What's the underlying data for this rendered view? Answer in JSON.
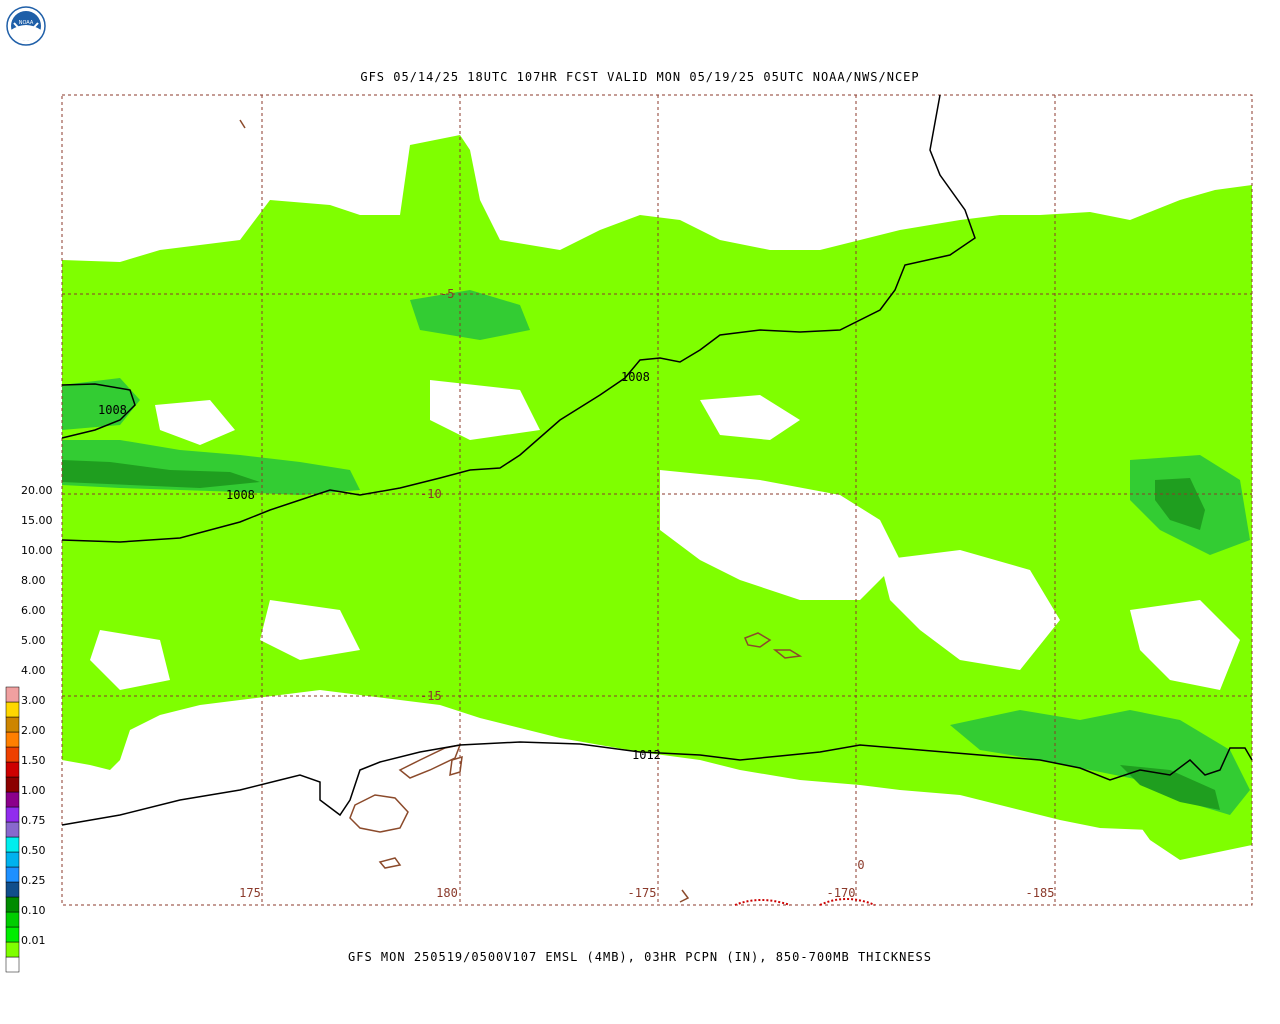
{
  "header": {
    "logo_text": "NOAA",
    "title": "GFS 05/14/25 18UTC 107HR FCST VALID MON 05/19/25 05UTC NOAA/NWS/NCEP"
  },
  "footer": {
    "title": "GFS MON 250519/0500V107 EMSL (4MB), 03HR PCPN (IN), 850-700MB THICKNESS"
  },
  "map": {
    "lat_labels": [
      "-5",
      "-10",
      "-15"
    ],
    "lon_labels": [
      "175",
      "180",
      "-175",
      "-170",
      "-185"
    ],
    "isobar_labels": [
      "1008",
      "1008",
      "1008",
      "1012"
    ],
    "stray_label": "0",
    "colors": {
      "precip_light": "#7fff00",
      "precip_mid": "#33cc33",
      "precip_heavy": "#1f9e1f",
      "isobar": "#000000",
      "coastline": "#8b4a2b",
      "grid": "#8b3a2b"
    }
  },
  "legend": {
    "labels": [
      "20.00",
      "15.00",
      "10.00",
      "8.00",
      "6.00",
      "5.00",
      "4.00",
      "3.00",
      "2.00",
      "1.50",
      "1.00",
      "0.75",
      "0.50",
      "0.25",
      "0.10",
      "0.01"
    ],
    "colors": [
      "#ffffff",
      "#7fff00",
      "#00ee00",
      "#00cd00",
      "#008b00",
      "#104e8b",
      "#1e90ff",
      "#00b2ee",
      "#00eeee",
      "#8968cd",
      "#912cee",
      "#8b008b",
      "#8b0000",
      "#cd0000",
      "#ee4000",
      "#ff7f00",
      "#cd8500",
      "#ffd700",
      "#f0a0a0"
    ]
  }
}
